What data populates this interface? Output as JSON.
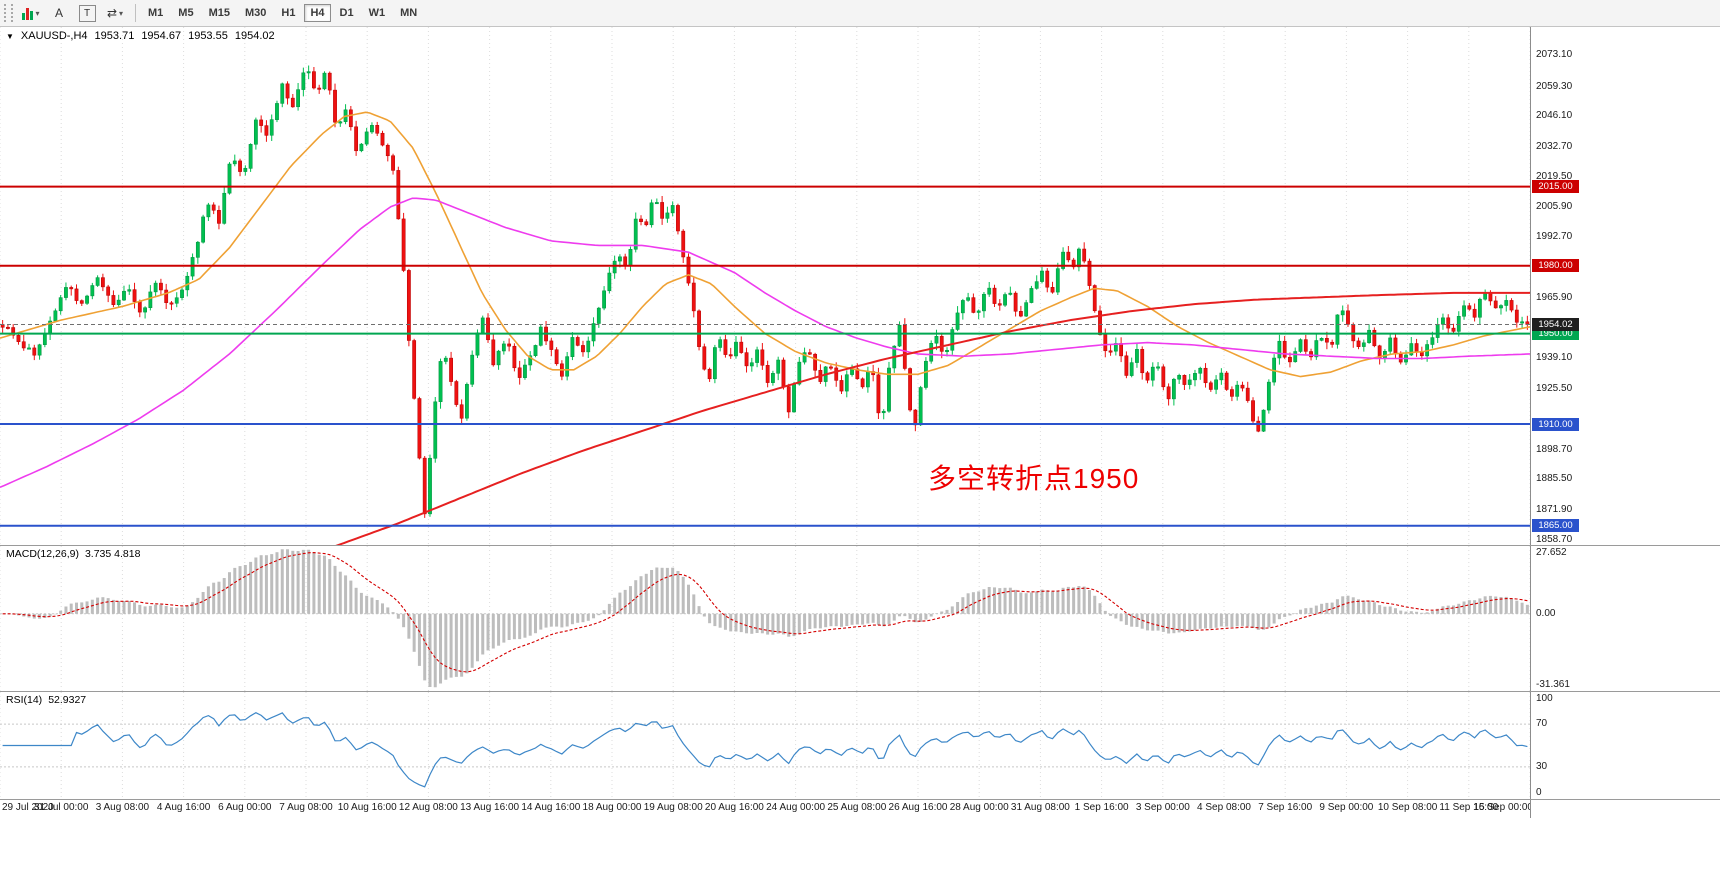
{
  "toolbar": {
    "icons": {
      "caret": "▾",
      "arrows": "⇄",
      "a": "A",
      "t": "T"
    },
    "timeframes": [
      {
        "label": "M1",
        "active": false
      },
      {
        "label": "M5",
        "active": false
      },
      {
        "label": "M15",
        "active": false
      },
      {
        "label": "M30",
        "active": false
      },
      {
        "label": "H1",
        "active": false
      },
      {
        "label": "H4",
        "active": true
      },
      {
        "label": "D1",
        "active": false
      },
      {
        "label": "W1",
        "active": false
      },
      {
        "label": "MN",
        "active": false
      }
    ]
  },
  "chart": {
    "header": {
      "marker": "▼",
      "symbol": "XAUUSD-,H4",
      "open": "1953.71",
      "high": "1954.67",
      "low": "1953.55",
      "close": "1954.02"
    },
    "annotation": {
      "text": "多空转折点1950",
      "color": "#ee0000"
    },
    "colors": {
      "up": "#00bf50",
      "up_edge": "#008f3d",
      "down": "#ee1111",
      "down_edge": "#b40000",
      "grid": "#dcdcdc",
      "current_line": "#6f6f6f",
      "macd_bar": "#bdbdbd",
      "macd_signal": "#d40000",
      "rsi_line": "#3d87c8",
      "level_dotted": "#c8c8c8"
    },
    "price_axis": {
      "max": 2085.6,
      "min": 1856.5,
      "tick_labels": [
        "2073.10",
        "2059.30",
        "2046.10",
        "2032.70",
        "2019.50",
        "2005.90",
        "1992.70",
        "1965.90",
        "1939.10",
        "1925.50",
        "1898.70",
        "1885.50",
        "1871.90",
        "1858.70"
      ]
    },
    "lines": [
      {
        "name": "resistance-line-2015",
        "price": 2015.0,
        "label": "2015.00",
        "color": "#cc0000",
        "width": 2
      },
      {
        "name": "resistance-line-1980",
        "price": 1980.0,
        "label": "1980.00",
        "color": "#cc0000",
        "width": 2
      },
      {
        "name": "pivot-line-1950",
        "price": 1950.0,
        "label": "1950.00",
        "color": "#00a651",
        "width": 2
      },
      {
        "name": "support-line-1910",
        "price": 1910.0,
        "label": "1910.00",
        "color": "#2a52cc",
        "width": 2
      },
      {
        "name": "support-line-1865",
        "price": 1865.0,
        "label": "1865.00",
        "color": "#2a52cc",
        "width": 2
      }
    ],
    "current_price": {
      "value": 1954.02,
      "label": "1954.02",
      "tag_color": "#1f1f1f"
    }
  },
  "indicators": {
    "macd": {
      "name": "MACD(12,26,9)",
      "values": "3.735 4.818",
      "axis_labels": [
        "27.652",
        "0.00",
        "-31.361"
      ],
      "range": {
        "max": 29,
        "min": -33
      },
      "params": {
        "fast": 12,
        "slow": 26,
        "signal": 9
      }
    },
    "rsi": {
      "name": "RSI(14)",
      "value": "52.9327",
      "period": 14,
      "axis_labels": [
        "100",
        "70",
        "30",
        "0"
      ],
      "levels": [
        70,
        30
      ],
      "range": {
        "max": 100,
        "min": 0
      }
    }
  },
  "time_axis": {
    "labels": [
      "29 Jul 2020",
      "31 Jul 00:00",
      "3 Aug 08:00",
      "4 Aug 16:00",
      "6 Aug 00:00",
      "7 Aug 08:00",
      "10 Aug 16:00",
      "12 Aug 08:00",
      "13 Aug 16:00",
      "14 Aug 16:00",
      "18 Aug 00:00",
      "19 Aug 08:00",
      "20 Aug 16:00",
      "24 Aug 00:00",
      "25 Aug 08:00",
      "26 Aug 16:00",
      "28 Aug 00:00",
      "31 Aug 08:00",
      "1 Sep 16:00",
      "3 Sep 00:00",
      "4 Sep 08:00",
      "7 Sep 16:00",
      "9 Sep 00:00",
      "10 Sep 08:00",
      "11 Sep 16:00",
      "15 Sep 00:00"
    ]
  },
  "chart_data": {
    "type": "candlestick",
    "symbol": "XAUUSD",
    "timeframe": "H4",
    "candle_count": 290,
    "visible_range": {
      "start": "29 Jul 2020",
      "end": "15 Sep 2020",
      "price_low": 1858.7,
      "price_high": 2073.1
    },
    "key_levels": [
      2015.0,
      1980.0,
      1950.0,
      1910.0,
      1865.0
    ],
    "last_close": 1954.02,
    "price_path_anchors": [
      [
        0.0,
        1954
      ],
      [
        0.01,
        1946
      ],
      [
        0.022,
        1941
      ],
      [
        0.032,
        1956
      ],
      [
        0.042,
        1972
      ],
      [
        0.052,
        1962
      ],
      [
        0.062,
        1976
      ],
      [
        0.072,
        1962
      ],
      [
        0.082,
        1970
      ],
      [
        0.092,
        1958
      ],
      [
        0.1,
        1974
      ],
      [
        0.108,
        1962
      ],
      [
        0.118,
        1970
      ],
      [
        0.126,
        1986
      ],
      [
        0.134,
        2008
      ],
      [
        0.142,
        2000
      ],
      [
        0.15,
        2030
      ],
      [
        0.158,
        2020
      ],
      [
        0.166,
        2046
      ],
      [
        0.174,
        2038
      ],
      [
        0.183,
        2060
      ],
      [
        0.191,
        2050
      ],
      [
        0.199,
        2069
      ],
      [
        0.206,
        2056
      ],
      [
        0.212,
        2066
      ],
      [
        0.219,
        2040
      ],
      [
        0.226,
        2050
      ],
      [
        0.233,
        2028
      ],
      [
        0.241,
        2044
      ],
      [
        0.249,
        2034
      ],
      [
        0.256,
        2022
      ],
      [
        0.262,
        1988
      ],
      [
        0.268,
        1934
      ],
      [
        0.273,
        1898
      ],
      [
        0.277,
        1868
      ],
      [
        0.283,
        1916
      ],
      [
        0.289,
        1946
      ],
      [
        0.295,
        1926
      ],
      [
        0.301,
        1911
      ],
      [
        0.308,
        1942
      ],
      [
        0.315,
        1958
      ],
      [
        0.322,
        1936
      ],
      [
        0.33,
        1948
      ],
      [
        0.338,
        1930
      ],
      [
        0.346,
        1940
      ],
      [
        0.353,
        1952
      ],
      [
        0.36,
        1942
      ],
      [
        0.367,
        1930
      ],
      [
        0.374,
        1948
      ],
      [
        0.381,
        1942
      ],
      [
        0.389,
        1958
      ],
      [
        0.396,
        1972
      ],
      [
        0.403,
        1986
      ],
      [
        0.409,
        1978
      ],
      [
        0.416,
        2004
      ],
      [
        0.421,
        1996
      ],
      [
        0.427,
        2012
      ],
      [
        0.433,
        2000
      ],
      [
        0.439,
        2008
      ],
      [
        0.445,
        1988
      ],
      [
        0.451,
        1968
      ],
      [
        0.457,
        1944
      ],
      [
        0.463,
        1928
      ],
      [
        0.469,
        1952
      ],
      [
        0.475,
        1938
      ],
      [
        0.482,
        1946
      ],
      [
        0.489,
        1932
      ],
      [
        0.496,
        1944
      ],
      [
        0.502,
        1926
      ],
      [
        0.509,
        1938
      ],
      [
        0.515,
        1914
      ],
      [
        0.521,
        1936
      ],
      [
        0.528,
        1944
      ],
      [
        0.535,
        1928
      ],
      [
        0.542,
        1938
      ],
      [
        0.549,
        1924
      ],
      [
        0.556,
        1936
      ],
      [
        0.563,
        1926
      ],
      [
        0.57,
        1938
      ],
      [
        0.576,
        1906
      ],
      [
        0.582,
        1938
      ],
      [
        0.588,
        1954
      ],
      [
        0.593,
        1926
      ],
      [
        0.598,
        1906
      ],
      [
        0.604,
        1934
      ],
      [
        0.611,
        1950
      ],
      [
        0.618,
        1940
      ],
      [
        0.625,
        1958
      ],
      [
        0.632,
        1968
      ],
      [
        0.639,
        1956
      ],
      [
        0.646,
        1972
      ],
      [
        0.653,
        1960
      ],
      [
        0.66,
        1970
      ],
      [
        0.667,
        1956
      ],
      [
        0.674,
        1968
      ],
      [
        0.681,
        1978
      ],
      [
        0.688,
        1966
      ],
      [
        0.695,
        1988
      ],
      [
        0.701,
        1978
      ],
      [
        0.707,
        1990
      ],
      [
        0.713,
        1970
      ],
      [
        0.719,
        1952
      ],
      [
        0.725,
        1938
      ],
      [
        0.731,
        1948
      ],
      [
        0.737,
        1930
      ],
      [
        0.744,
        1942
      ],
      [
        0.75,
        1928
      ],
      [
        0.757,
        1938
      ],
      [
        0.764,
        1920
      ],
      [
        0.77,
        1934
      ],
      [
        0.777,
        1926
      ],
      [
        0.784,
        1936
      ],
      [
        0.791,
        1924
      ],
      [
        0.798,
        1934
      ],
      [
        0.805,
        1922
      ],
      [
        0.812,
        1930
      ],
      [
        0.818,
        1916
      ],
      [
        0.824,
        1906
      ],
      [
        0.83,
        1928
      ],
      [
        0.837,
        1946
      ],
      [
        0.844,
        1936
      ],
      [
        0.85,
        1948
      ],
      [
        0.857,
        1938
      ],
      [
        0.864,
        1950
      ],
      [
        0.871,
        1942
      ],
      [
        0.877,
        1962
      ],
      [
        0.884,
        1950
      ],
      [
        0.89,
        1942
      ],
      [
        0.897,
        1952
      ],
      [
        0.903,
        1938
      ],
      [
        0.91,
        1948
      ],
      [
        0.917,
        1936
      ],
      [
        0.924,
        1946
      ],
      [
        0.931,
        1940
      ],
      [
        0.938,
        1950
      ],
      [
        0.945,
        1958
      ],
      [
        0.951,
        1950
      ],
      [
        0.958,
        1964
      ],
      [
        0.965,
        1956
      ],
      [
        0.972,
        1970
      ],
      [
        0.979,
        1960
      ],
      [
        0.986,
        1966
      ],
      [
        0.993,
        1956
      ],
      [
        1.0,
        1954
      ]
    ],
    "overlays": [
      {
        "name": "ma-fast-orange",
        "color": "#efa134",
        "width": 1.6,
        "points": [
          [
            0.0,
            1948
          ],
          [
            0.04,
            1956
          ],
          [
            0.08,
            1962
          ],
          [
            0.11,
            1968
          ],
          [
            0.13,
            1974
          ],
          [
            0.15,
            1988
          ],
          [
            0.17,
            2006
          ],
          [
            0.19,
            2024
          ],
          [
            0.21,
            2038
          ],
          [
            0.225,
            2046
          ],
          [
            0.24,
            2048
          ],
          [
            0.255,
            2044
          ],
          [
            0.27,
            2032
          ],
          [
            0.285,
            2012
          ],
          [
            0.3,
            1990
          ],
          [
            0.315,
            1968
          ],
          [
            0.33,
            1952
          ],
          [
            0.345,
            1940
          ],
          [
            0.36,
            1934
          ],
          [
            0.375,
            1934
          ],
          [
            0.39,
            1940
          ],
          [
            0.405,
            1950
          ],
          [
            0.42,
            1962
          ],
          [
            0.435,
            1972
          ],
          [
            0.45,
            1976
          ],
          [
            0.465,
            1972
          ],
          [
            0.48,
            1962
          ],
          [
            0.5,
            1950
          ],
          [
            0.52,
            1942
          ],
          [
            0.54,
            1937
          ],
          [
            0.56,
            1934
          ],
          [
            0.58,
            1932
          ],
          [
            0.6,
            1932
          ],
          [
            0.62,
            1936
          ],
          [
            0.64,
            1944
          ],
          [
            0.66,
            1952
          ],
          [
            0.68,
            1960
          ],
          [
            0.7,
            1966
          ],
          [
            0.715,
            1970
          ],
          [
            0.73,
            1969
          ],
          [
            0.75,
            1962
          ],
          [
            0.77,
            1953
          ],
          [
            0.79,
            1946
          ],
          [
            0.81,
            1940
          ],
          [
            0.83,
            1934
          ],
          [
            0.85,
            1931
          ],
          [
            0.87,
            1933
          ],
          [
            0.89,
            1938
          ],
          [
            0.91,
            1941
          ],
          [
            0.93,
            1942
          ],
          [
            0.95,
            1945
          ],
          [
            0.97,
            1949
          ],
          [
            1.0,
            1953
          ]
        ]
      },
      {
        "name": "ma-mid-magenta",
        "color": "#ee3cee",
        "width": 1.6,
        "points": [
          [
            0.0,
            1882
          ],
          [
            0.03,
            1891
          ],
          [
            0.06,
            1901
          ],
          [
            0.09,
            1912
          ],
          [
            0.12,
            1925
          ],
          [
            0.15,
            1941
          ],
          [
            0.18,
            1960
          ],
          [
            0.21,
            1980
          ],
          [
            0.235,
            1996
          ],
          [
            0.255,
            2006
          ],
          [
            0.27,
            2010
          ],
          [
            0.285,
            2009
          ],
          [
            0.3,
            2005
          ],
          [
            0.33,
            1997
          ],
          [
            0.36,
            1991
          ],
          [
            0.39,
            1989
          ],
          [
            0.42,
            1989
          ],
          [
            0.45,
            1986
          ],
          [
            0.48,
            1977
          ],
          [
            0.5,
            1968
          ],
          [
            0.52,
            1960
          ],
          [
            0.54,
            1953
          ],
          [
            0.56,
            1948
          ],
          [
            0.58,
            1944
          ],
          [
            0.6,
            1941
          ],
          [
            0.63,
            1940
          ],
          [
            0.66,
            1941
          ],
          [
            0.69,
            1943
          ],
          [
            0.72,
            1945
          ],
          [
            0.75,
            1946
          ],
          [
            0.78,
            1945
          ],
          [
            0.81,
            1943
          ],
          [
            0.84,
            1941
          ],
          [
            0.87,
            1940
          ],
          [
            0.9,
            1939
          ],
          [
            0.93,
            1939
          ],
          [
            0.96,
            1940
          ],
          [
            1.0,
            1941
          ]
        ]
      },
      {
        "name": "ma-slow-red",
        "color": "#e62020",
        "width": 2,
        "points": [
          [
            0.215,
            1855
          ],
          [
            0.26,
            1866
          ],
          [
            0.3,
            1877
          ],
          [
            0.34,
            1888
          ],
          [
            0.38,
            1898
          ],
          [
            0.42,
            1907
          ],
          [
            0.46,
            1916
          ],
          [
            0.5,
            1924
          ],
          [
            0.54,
            1932
          ],
          [
            0.58,
            1939
          ],
          [
            0.62,
            1945
          ],
          [
            0.66,
            1951
          ],
          [
            0.7,
            1956
          ],
          [
            0.74,
            1960
          ],
          [
            0.78,
            1963
          ],
          [
            0.82,
            1965
          ],
          [
            0.86,
            1966
          ],
          [
            0.9,
            1967
          ],
          [
            0.95,
            1968
          ],
          [
            1.0,
            1968
          ]
        ]
      }
    ]
  }
}
